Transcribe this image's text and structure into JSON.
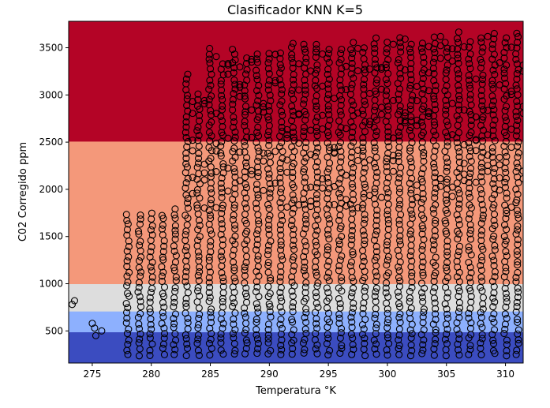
{
  "chart_data": {
    "type": "scatter",
    "title": "Clasificador KNN K=5",
    "xlabel": "Temperatura °K",
    "ylabel": "C02 Corregido ppm",
    "xlim": [
      273,
      311.5
    ],
    "ylim": [
      160,
      3780
    ],
    "xticks": [
      275,
      280,
      285,
      290,
      295,
      300,
      305,
      310
    ],
    "yticks": [
      500,
      1000,
      1500,
      2000,
      2500,
      3000,
      3500
    ],
    "grid": false,
    "legend": "none",
    "colors": {
      "class_0": "#3b4cc0",
      "class_1": "#8db0fe",
      "class_2": "#dddddd",
      "class_3": "#f4987a",
      "class_4": "#b40426",
      "marker_edge": "#000000"
    },
    "decision_regions": [
      {
        "class": 0,
        "y_range": [
          160,
          490
        ],
        "x_range": [
          273,
          311.5
        ]
      },
      {
        "class": 1,
        "y_range": [
          490,
          710
        ],
        "x_range": [
          273,
          311.5
        ]
      },
      {
        "class": 2,
        "y_range": [
          710,
          1000
        ],
        "x_range": [
          273,
          311.5
        ]
      },
      {
        "class": 3,
        "y_range": [
          1000,
          2510
        ],
        "x_range": [
          273,
          278
        ]
      },
      {
        "class": 3,
        "y_range": [
          1000,
          1780
        ],
        "x_range": [
          278,
          311.5
        ]
      },
      {
        "class": 3,
        "y_range": [
          1780,
          2510
        ],
        "x_range": [
          278,
          311.5
        ]
      },
      {
        "class": 4,
        "y_range": [
          2510,
          3780
        ],
        "x_range": [
          273,
          311.5
        ]
      }
    ],
    "scatter_columns": [
      {
        "x": 278,
        "y_min": 250,
        "y_max": 1780
      },
      {
        "x": 279,
        "y_min": 250,
        "y_max": 1780
      },
      {
        "x": 280,
        "y_min": 250,
        "y_max": 1780
      },
      {
        "x": 281,
        "y_min": 250,
        "y_max": 1780
      },
      {
        "x": 282,
        "y_min": 250,
        "y_max": 1790
      },
      {
        "x": 283,
        "y_min": 250,
        "y_max": 3250
      },
      {
        "x": 284,
        "y_min": 250,
        "y_max": 3000
      },
      {
        "x": 285,
        "y_min": 250,
        "y_max": 3500
      },
      {
        "x": 286,
        "y_min": 250,
        "y_max": 3350
      },
      {
        "x": 287,
        "y_min": 250,
        "y_max": 3500
      },
      {
        "x": 288,
        "y_min": 250,
        "y_max": 3400
      },
      {
        "x": 289,
        "y_min": 250,
        "y_max": 3480
      },
      {
        "x": 290,
        "y_min": 250,
        "y_max": 3450
      },
      {
        "x": 291,
        "y_min": 250,
        "y_max": 3450
      },
      {
        "x": 292,
        "y_min": 250,
        "y_max": 3550
      },
      {
        "x": 293,
        "y_min": 250,
        "y_max": 3550
      },
      {
        "x": 294,
        "y_min": 250,
        "y_max": 3600
      },
      {
        "x": 295,
        "y_min": 250,
        "y_max": 3500
      },
      {
        "x": 296,
        "y_min": 250,
        "y_max": 3500
      },
      {
        "x": 297,
        "y_min": 250,
        "y_max": 3600
      },
      {
        "x": 298,
        "y_min": 250,
        "y_max": 3500
      },
      {
        "x": 299,
        "y_min": 250,
        "y_max": 3650
      },
      {
        "x": 300,
        "y_min": 250,
        "y_max": 3600
      },
      {
        "x": 301,
        "y_min": 250,
        "y_max": 3650
      },
      {
        "x": 302,
        "y_min": 250,
        "y_max": 3600
      },
      {
        "x": 303,
        "y_min": 250,
        "y_max": 3600
      },
      {
        "x": 304,
        "y_min": 250,
        "y_max": 3650
      },
      {
        "x": 305,
        "y_min": 250,
        "y_max": 3600
      },
      {
        "x": 306,
        "y_min": 250,
        "y_max": 3700
      },
      {
        "x": 307,
        "y_min": 250,
        "y_max": 3600
      },
      {
        "x": 308,
        "y_min": 250,
        "y_max": 3650
      },
      {
        "x": 309,
        "y_min": 250,
        "y_max": 3700
      },
      {
        "x": 310,
        "y_min": 250,
        "y_max": 3650
      },
      {
        "x": 311,
        "y_min": 250,
        "y_max": 3700
      }
    ],
    "scatter_outliers": [
      {
        "x": 273.3,
        "y": 780
      },
      {
        "x": 273.5,
        "y": 820
      },
      {
        "x": 275.0,
        "y": 580
      },
      {
        "x": 275.2,
        "y": 530
      },
      {
        "x": 275.3,
        "y": 450
      },
      {
        "x": 275.8,
        "y": 500
      }
    ]
  }
}
